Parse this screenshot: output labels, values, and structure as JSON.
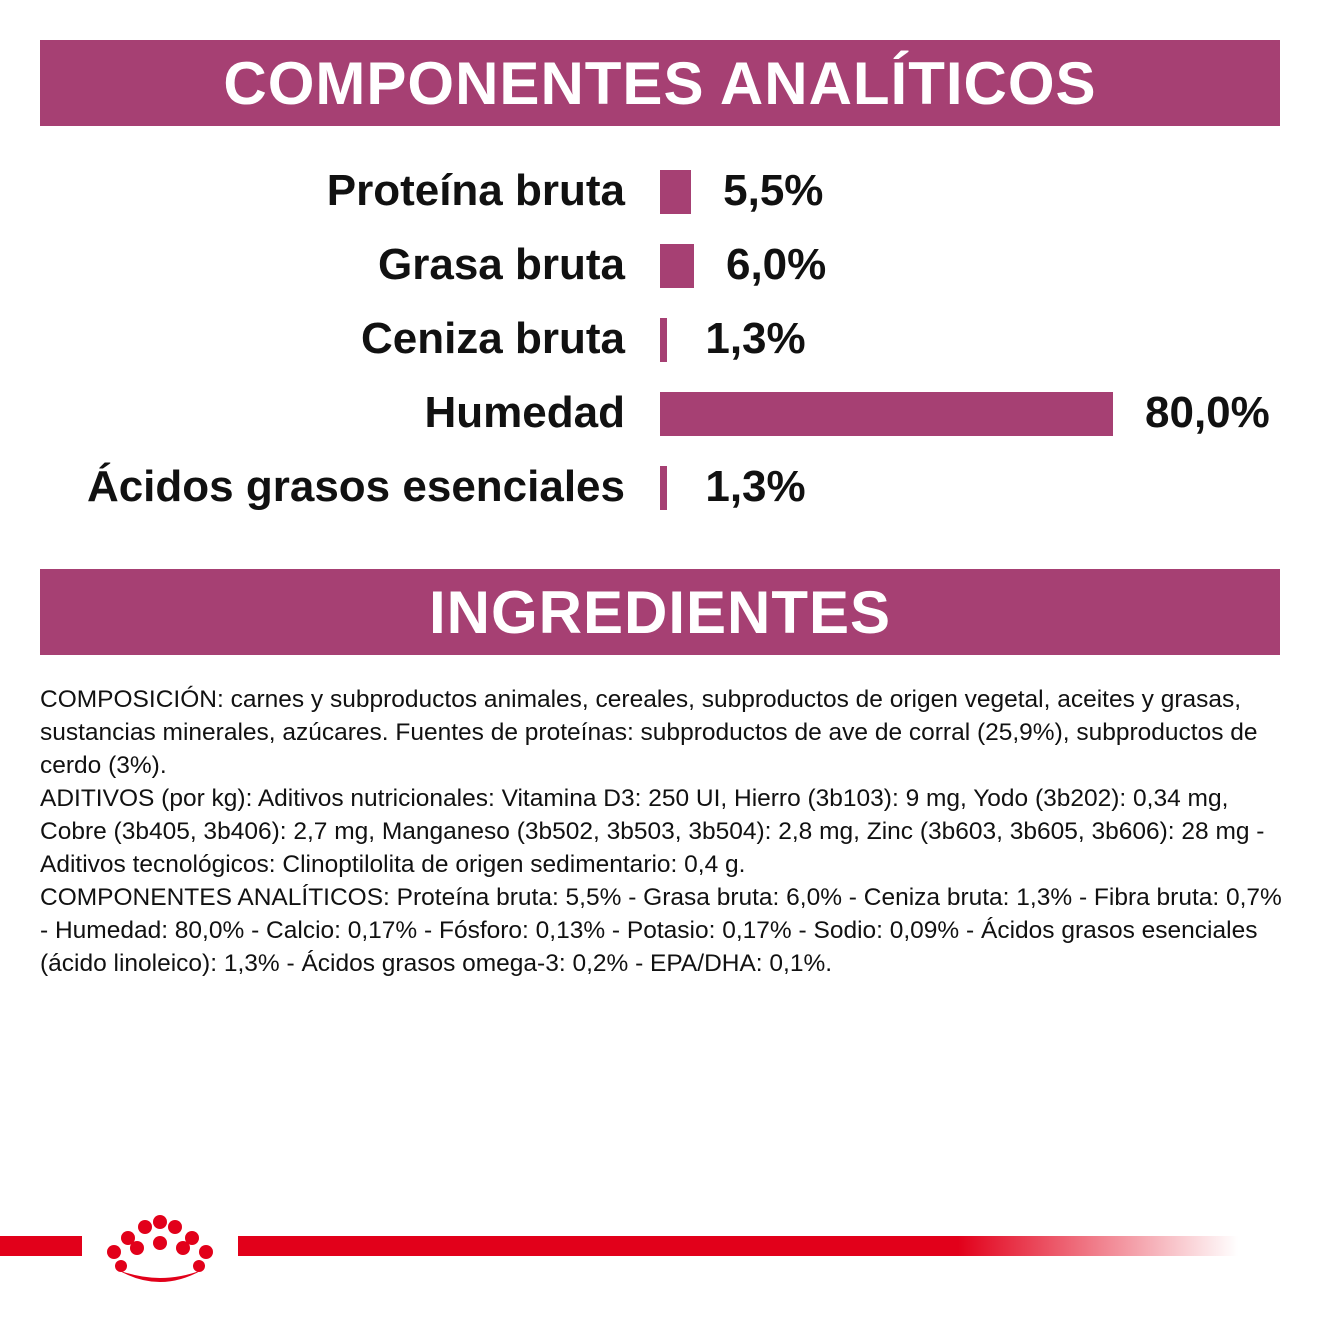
{
  "colors": {
    "accent": "#a64073",
    "brand_red": "#e2001a"
  },
  "sections": {
    "analytics_title": "COMPONENTES ANALÍTICOS",
    "ingredients_title": "INGREDIENTES"
  },
  "chart_data": {
    "type": "bar",
    "orientation": "horizontal",
    "categories": [
      "Proteína bruta",
      "Grasa bruta",
      "Ceniza bruta",
      "Humedad",
      "Ácidos grasos esenciales"
    ],
    "values": [
      5.5,
      6.0,
      1.3,
      80.0,
      1.3
    ],
    "value_labels": [
      "5,5%",
      "6,0%",
      "1,3%",
      "80,0%",
      "1,3%"
    ],
    "xlim": [
      0,
      80
    ],
    "grid": false,
    "legend": "none"
  },
  "ingredients": {
    "paragraphs": [
      "COMPOSICIÓN: carnes y subproductos animales, cereales, subproductos de origen vegetal, aceites y grasas, sustancias minerales, azúcares. Fuentes de proteínas: subproductos de ave de corral (25,9%), subproductos de cerdo (3%).",
      "ADITIVOS (por kg): Aditivos nutricionales: Vitamina D3: 250 UI, Hierro (3b103): 9 mg, Yodo (3b202): 0,34 mg, Cobre (3b405, 3b406): 2,7 mg, Manganeso (3b502, 3b503, 3b504): 2,8 mg, Zinc (3b603, 3b605, 3b606): 28 mg - Aditivos tecnológicos: Clinoptilolita de origen sedimentario: 0,4 g.",
      "COMPONENTES ANALÍTICOS: Proteína bruta: 5,5% - Grasa bruta: 6,0% - Ceniza bruta: 1,3% - Fibra bruta: 0,7% - Humedad: 80,0% - Calcio: 0,17% - Fósforo: 0,13% - Potasio: 0,17% - Sodio: 0,09% - Ácidos grasos esenciales (ácido linoleico): 1,3% - Ácidos grasos omega-3: 0,2% - EPA/DHA: 0,1%."
    ]
  },
  "footer": {
    "logo_icon": "royal-crown-icon"
  }
}
